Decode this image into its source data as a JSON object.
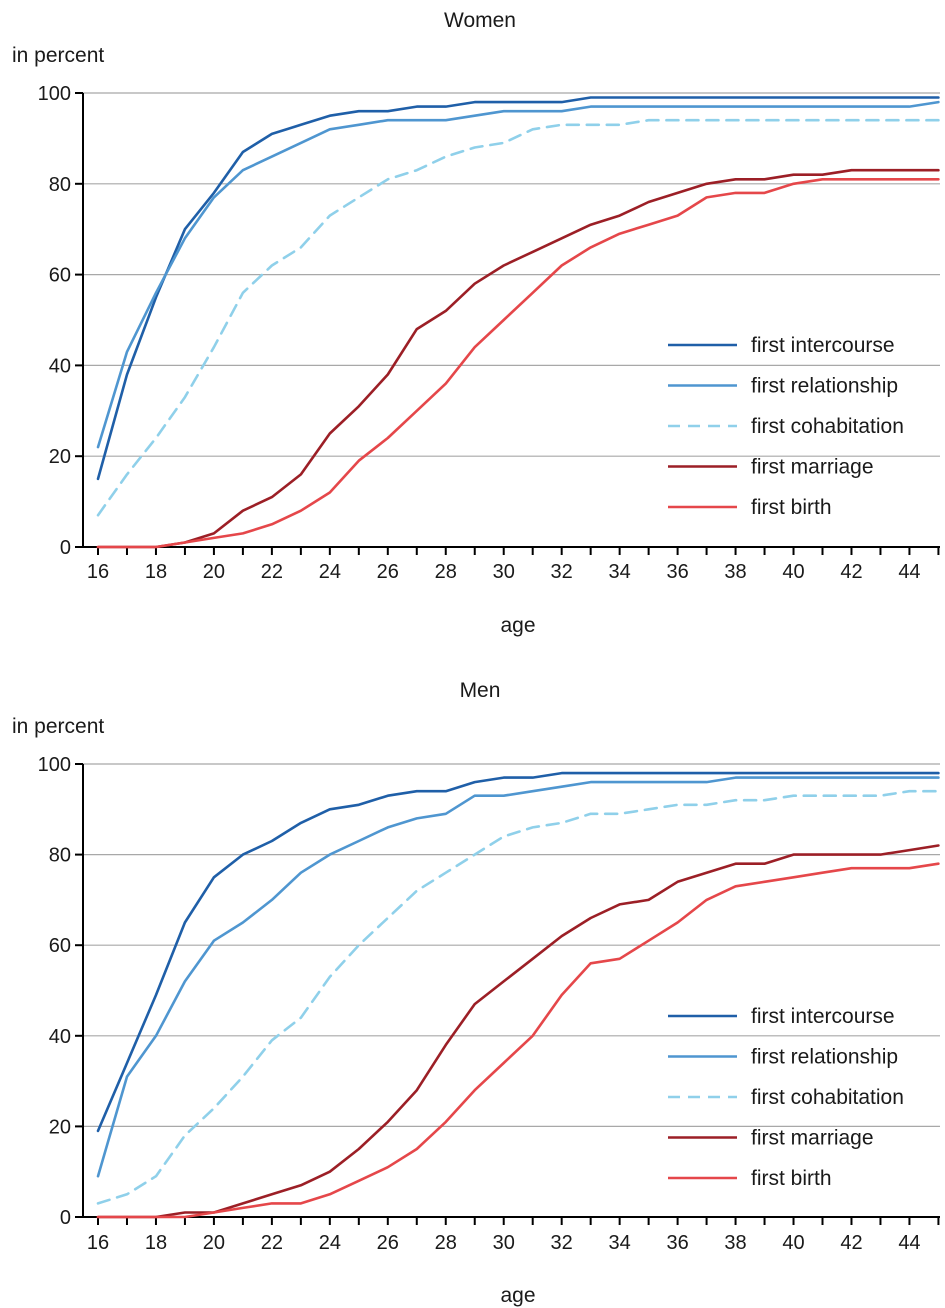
{
  "colors": {
    "first_intercourse": "#1f5fa8",
    "first_relationship": "#4f96d0",
    "first_cohabitation": "#8fd0ea",
    "first_marriage": "#9c1f26",
    "first_birth": "#e5474a",
    "grid": "#a8a8a8",
    "axis": "#000000"
  },
  "chart_data": [
    {
      "type": "line",
      "title": "Women",
      "ylabel": "in percent",
      "xlabel": "age",
      "xlim": [
        15.5,
        45.5
      ],
      "ylim": [
        0,
        100
      ],
      "xticks": [
        16,
        18,
        20,
        22,
        24,
        26,
        28,
        30,
        32,
        34,
        36,
        38,
        40,
        42,
        44
      ],
      "yticks": [
        0,
        20,
        40,
        60,
        80,
        100
      ],
      "grid": true,
      "legend_position": "bottom-right",
      "x": [
        16,
        17,
        18,
        19,
        20,
        21,
        22,
        23,
        24,
        25,
        26,
        27,
        28,
        29,
        30,
        31,
        32,
        33,
        34,
        35,
        36,
        37,
        38,
        39,
        40,
        41,
        42,
        43,
        44,
        45
      ],
      "series": [
        {
          "name": "first intercourse",
          "color_key": "first_intercourse",
          "dashed": false,
          "values": [
            15,
            38,
            55,
            70,
            78,
            87,
            91,
            93,
            95,
            96,
            96,
            97,
            97,
            98,
            98,
            98,
            98,
            99,
            99,
            99,
            99,
            99,
            99,
            99,
            99,
            99,
            99,
            99,
            99,
            99
          ]
        },
        {
          "name": "first relationship",
          "color_key": "first_relationship",
          "dashed": false,
          "values": [
            22,
            43,
            56,
            68,
            77,
            83,
            86,
            89,
            92,
            93,
            94,
            94,
            94,
            95,
            96,
            96,
            96,
            97,
            97,
            97,
            97,
            97,
            97,
            97,
            97,
            97,
            97,
            97,
            97,
            98
          ]
        },
        {
          "name": "first cohabitation",
          "color_key": "first_cohabitation",
          "dashed": true,
          "values": [
            7,
            16,
            24,
            33,
            44,
            56,
            62,
            66,
            73,
            77,
            81,
            83,
            86,
            88,
            89,
            92,
            93,
            93,
            93,
            94,
            94,
            94,
            94,
            94,
            94,
            94,
            94,
            94,
            94,
            94
          ]
        },
        {
          "name": "first marriage",
          "color_key": "first_marriage",
          "dashed": false,
          "values": [
            0,
            0,
            0,
            1,
            3,
            8,
            11,
            16,
            25,
            31,
            38,
            48,
            52,
            58,
            62,
            65,
            68,
            71,
            73,
            76,
            78,
            80,
            81,
            81,
            82,
            82,
            83,
            83,
            83,
            83
          ]
        },
        {
          "name": "first birth",
          "color_key": "first_birth",
          "dashed": false,
          "values": [
            0,
            0,
            0,
            1,
            2,
            3,
            5,
            8,
            12,
            19,
            24,
            30,
            36,
            44,
            50,
            56,
            62,
            66,
            69,
            71,
            73,
            77,
            78,
            78,
            80,
            81,
            81,
            81,
            81,
            81
          ]
        }
      ]
    },
    {
      "type": "line",
      "title": "Men",
      "ylabel": "in percent",
      "xlabel": "age",
      "xlim": [
        15.5,
        45.5
      ],
      "ylim": [
        0,
        100
      ],
      "xticks": [
        16,
        18,
        20,
        22,
        24,
        26,
        28,
        30,
        32,
        34,
        36,
        38,
        40,
        42,
        44
      ],
      "yticks": [
        0,
        20,
        40,
        60,
        80,
        100
      ],
      "grid": true,
      "legend_position": "bottom-right",
      "x": [
        16,
        17,
        18,
        19,
        20,
        21,
        22,
        23,
        24,
        25,
        26,
        27,
        28,
        29,
        30,
        31,
        32,
        33,
        34,
        35,
        36,
        37,
        38,
        39,
        40,
        41,
        42,
        43,
        44,
        45
      ],
      "series": [
        {
          "name": "first intercourse",
          "color_key": "first_intercourse",
          "dashed": false,
          "values": [
            19,
            34,
            49,
            65,
            75,
            80,
            83,
            87,
            90,
            91,
            93,
            94,
            94,
            96,
            97,
            97,
            98,
            98,
            98,
            98,
            98,
            98,
            98,
            98,
            98,
            98,
            98,
            98,
            98,
            98
          ]
        },
        {
          "name": "first relationship",
          "color_key": "first_relationship",
          "dashed": false,
          "values": [
            9,
            31,
            40,
            52,
            61,
            65,
            70,
            76,
            80,
            83,
            86,
            88,
            89,
            93,
            93,
            94,
            95,
            96,
            96,
            96,
            96,
            96,
            97,
            97,
            97,
            97,
            97,
            97,
            97,
            97
          ]
        },
        {
          "name": "first cohabitation",
          "color_key": "first_cohabitation",
          "dashed": true,
          "values": [
            3,
            5,
            9,
            18,
            24,
            31,
            39,
            44,
            53,
            60,
            66,
            72,
            76,
            80,
            84,
            86,
            87,
            89,
            89,
            90,
            91,
            91,
            92,
            92,
            93,
            93,
            93,
            93,
            94,
            94
          ]
        },
        {
          "name": "first marriage",
          "color_key": "first_marriage",
          "dashed": false,
          "values": [
            0,
            0,
            0,
            1,
            1,
            3,
            5,
            7,
            10,
            15,
            21,
            28,
            38,
            47,
            52,
            57,
            62,
            66,
            69,
            70,
            74,
            76,
            78,
            78,
            80,
            80,
            80,
            80,
            81,
            82
          ]
        },
        {
          "name": "first birth",
          "color_key": "first_birth",
          "dashed": false,
          "values": [
            0,
            0,
            0,
            0,
            1,
            2,
            3,
            3,
            5,
            8,
            11,
            15,
            21,
            28,
            34,
            40,
            49,
            56,
            57,
            61,
            65,
            70,
            73,
            74,
            75,
            76,
            77,
            77,
            77,
            78
          ]
        }
      ]
    }
  ]
}
